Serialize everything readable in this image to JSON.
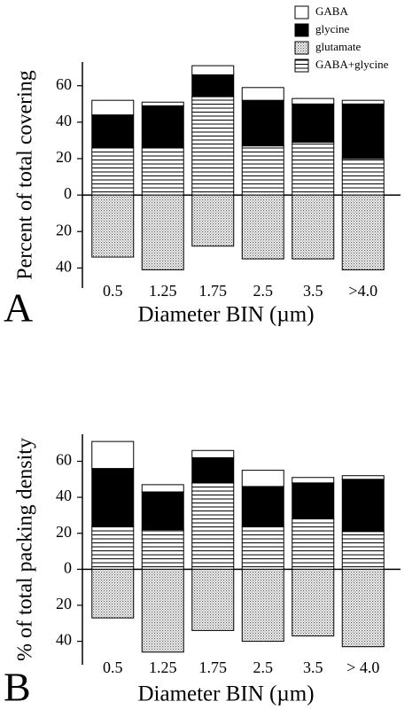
{
  "chart_data": [
    {
      "type": "bar",
      "stacked": true,
      "panel": "A",
      "ylabel": "Percent of total covering",
      "xlabel": "Diameter BIN (µm)",
      "categories": [
        "0.5",
        "1.25",
        "1.75",
        "2.5",
        "3.5",
        ">4.0"
      ],
      "series": [
        {
          "name": "GABA",
          "color": "#ffffff",
          "values": [
            8,
            2,
            5,
            7,
            3,
            2
          ]
        },
        {
          "name": "glycine",
          "color": "#000000",
          "values": [
            18,
            23,
            12,
            25,
            21,
            30
          ]
        },
        {
          "name": "glutamate",
          "color": "#ffffff",
          "pattern": "dots",
          "values": [
            -34,
            -41,
            -28,
            -35,
            -35,
            -41
          ]
        },
        {
          "name": "GABA+glycine",
          "color": "#ffffff",
          "pattern": "hlines",
          "values": [
            26,
            26,
            54,
            27,
            29,
            20
          ]
        }
      ],
      "ylim": [
        -51,
        73
      ],
      "yticks": [
        {
          "value": -40,
          "label": "40"
        },
        {
          "value": -20,
          "label": "20"
        },
        0,
        20,
        40,
        60
      ],
      "grid": false,
      "legend": "upper right"
    },
    {
      "type": "bar",
      "stacked": true,
      "panel": "B",
      "ylabel": "% of total packing density",
      "xlabel": "Diameter BIN (µm)",
      "categories": [
        "0.5",
        "1.25",
        "1.75",
        "2.5",
        "3.5",
        "> 4.0"
      ],
      "series": [
        {
          "color": "#ffffff",
          "values": [
            15,
            4,
            4,
            9,
            3,
            2
          ]
        },
        {
          "color": "#000000",
          "values": [
            32,
            21,
            14,
            22,
            20,
            29
          ]
        },
        {
          "color": "#ffffff",
          "pattern": "dots",
          "values": [
            -27,
            -46,
            -34,
            -40,
            -37,
            -43
          ]
        },
        {
          "color": "#ffffff",
          "pattern": "hlines",
          "values": [
            24,
            22,
            48,
            24,
            28,
            21
          ]
        }
      ],
      "ylim": [
        -53,
        75
      ],
      "yticks": [
        {
          "value": -40,
          "label": "40"
        },
        {
          "value": -20,
          "label": "20"
        },
        0,
        20,
        40,
        60
      ],
      "grid": false
    }
  ]
}
